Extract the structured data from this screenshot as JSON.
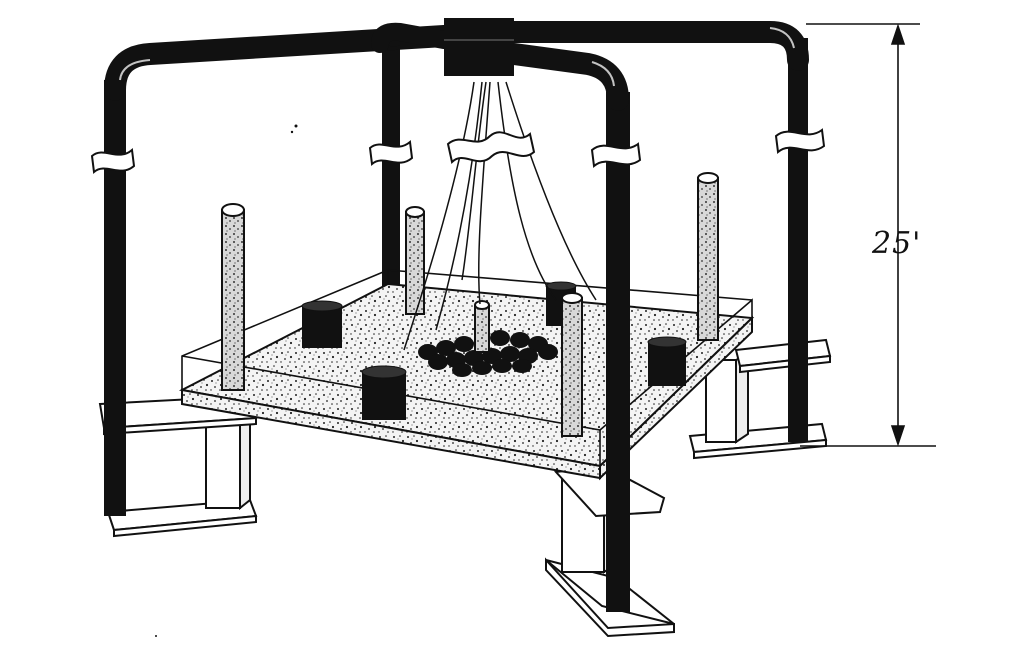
{
  "diagram": {
    "dimension_label": "25'",
    "colors": {
      "ink": "#111111",
      "paper": "#ffffff",
      "concrete": "#f2f2f2"
    },
    "parts": [
      "overhead-pipe-frame",
      "central-hub",
      "support-posts",
      "suspended-cables",
      "test-platform",
      "piles",
      "pile-caps",
      "pedestals",
      "footings",
      "dimension-arrow"
    ]
  }
}
